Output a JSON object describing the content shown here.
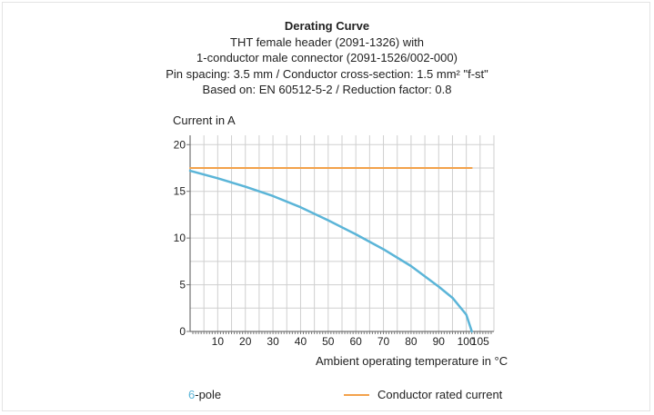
{
  "chart_data": {
    "type": "line",
    "title": "Derating Curve",
    "subtitle_lines": [
      "THT female header (2091-1326) with",
      "1-conductor male connector (2091-1526/002-000)",
      "Pin spacing: 3.5 mm / Conductor cross-section: 1.5 mm² \"f-st\"",
      "Based on: EN 60512-5-2 / Reduction factor: 0.8"
    ],
    "ylabel": "Current in A",
    "xlabel": "Ambient operating temperature in °C",
    "xlim": [
      0,
      110
    ],
    "ylim": [
      0,
      21
    ],
    "x_ticks": [
      10,
      20,
      30,
      40,
      50,
      60,
      70,
      80,
      90,
      100,
      105
    ],
    "y_ticks": [
      0,
      5,
      10,
      15,
      20
    ],
    "grid": true,
    "series": [
      {
        "name": "6-pole",
        "color": "#5bb5d8",
        "x": [
          0,
          10,
          20,
          30,
          40,
          50,
          60,
          70,
          80,
          90,
          95,
          100,
          102
        ],
        "y": [
          17.2,
          16.4,
          15.5,
          14.5,
          13.3,
          11.9,
          10.4,
          8.8,
          7.0,
          4.8,
          3.6,
          1.8,
          0
        ]
      },
      {
        "name": "Conductor rated current",
        "color": "#f3a24b",
        "x": [
          0,
          102
        ],
        "y": [
          17.5,
          17.5
        ]
      }
    ],
    "legend": {
      "pole_number": "6",
      "pole_suffix": "-pole",
      "rated_label": "Conductor rated current"
    }
  }
}
